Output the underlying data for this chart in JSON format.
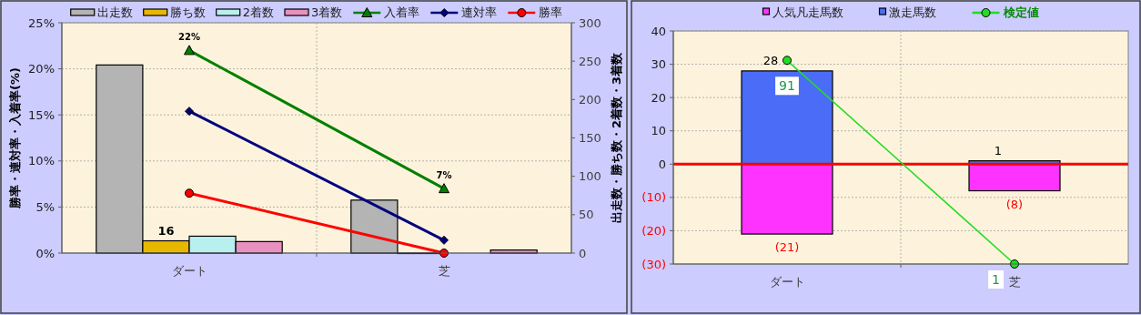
{
  "chart_data": [
    {
      "type": "bar",
      "categories": [
        "ダート",
        "芝"
      ],
      "ylabel": "勝率・連対率・入着率(%)",
      "y2label": "出走数・勝ち数・2着数・3着数",
      "ylim": [
        0,
        25
      ],
      "yticks": [
        {
          "value": 0,
          "label": "0%"
        },
        {
          "value": 5,
          "label": "5%"
        },
        {
          "value": 10,
          "label": "10%"
        },
        {
          "value": 15,
          "label": "15%"
        },
        {
          "value": 20,
          "label": "20%"
        },
        {
          "value": 25,
          "label": "25%"
        }
      ],
      "y2lim": [
        0,
        300
      ],
      "y2ticks": [
        0,
        50,
        100,
        150,
        200,
        250,
        300
      ],
      "grid": true,
      "legend": "top",
      "series": [
        {
          "name": "出走数",
          "color": "#b4b4b4",
          "axis": "y2",
          "values": [
            245,
            69
          ]
        },
        {
          "name": "勝ち数",
          "color": "#e8b800",
          "axis": "y2",
          "values": [
            16,
            0
          ],
          "value_labels": [
            "16",
            null
          ]
        },
        {
          "name": "2着数",
          "color": "#b8f0f0",
          "axis": "y2",
          "values": [
            22,
            null
          ]
        },
        {
          "name": "3着数",
          "color": "#e890c0",
          "axis": "y2",
          "values": [
            15,
            4
          ]
        },
        {
          "name": "入着率",
          "type": "line",
          "color": "#008000",
          "marker": "triangle",
          "values": [
            22,
            7
          ],
          "value_labels": [
            "22%",
            "7%"
          ]
        },
        {
          "name": "連対率",
          "type": "line",
          "color": "#000080",
          "marker": "diamond",
          "values": [
            15.4,
            1.4
          ]
        },
        {
          "name": "勝率",
          "type": "line",
          "color": "#ff0000",
          "marker": "circle",
          "values": [
            6.5,
            0
          ]
        }
      ]
    },
    {
      "type": "bar",
      "stacked": true,
      "categories": [
        "ダート",
        "芝"
      ],
      "ylim": [
        -30,
        40
      ],
      "yticks": [
        {
          "value": -30,
          "label": "(30)"
        },
        {
          "value": -20,
          "label": "(20)"
        },
        {
          "value": -10,
          "label": "(10)"
        },
        0,
        10,
        20,
        30,
        40
      ],
      "y2lim": [
        1,
        104
      ],
      "grid": true,
      "legend": "top",
      "ref_lines": [
        {
          "axis": "y",
          "value": 0,
          "color": "#ff0000"
        }
      ],
      "series": [
        {
          "name": "人気凡走馬数",
          "color": "#ff33ff",
          "values": [
            -21,
            -8
          ],
          "value_labels": [
            "(21)",
            "(8)"
          ]
        },
        {
          "name": "激走馬数",
          "color": "#4a6cf7",
          "values": [
            28,
            1
          ],
          "value_labels": [
            "28",
            "1"
          ]
        },
        {
          "name": "検定値",
          "type": "line",
          "axis": "y2",
          "color": "#22dd22",
          "marker": "circle",
          "values": [
            91,
            1
          ],
          "value_labels": [
            "91",
            "1"
          ]
        }
      ]
    }
  ]
}
